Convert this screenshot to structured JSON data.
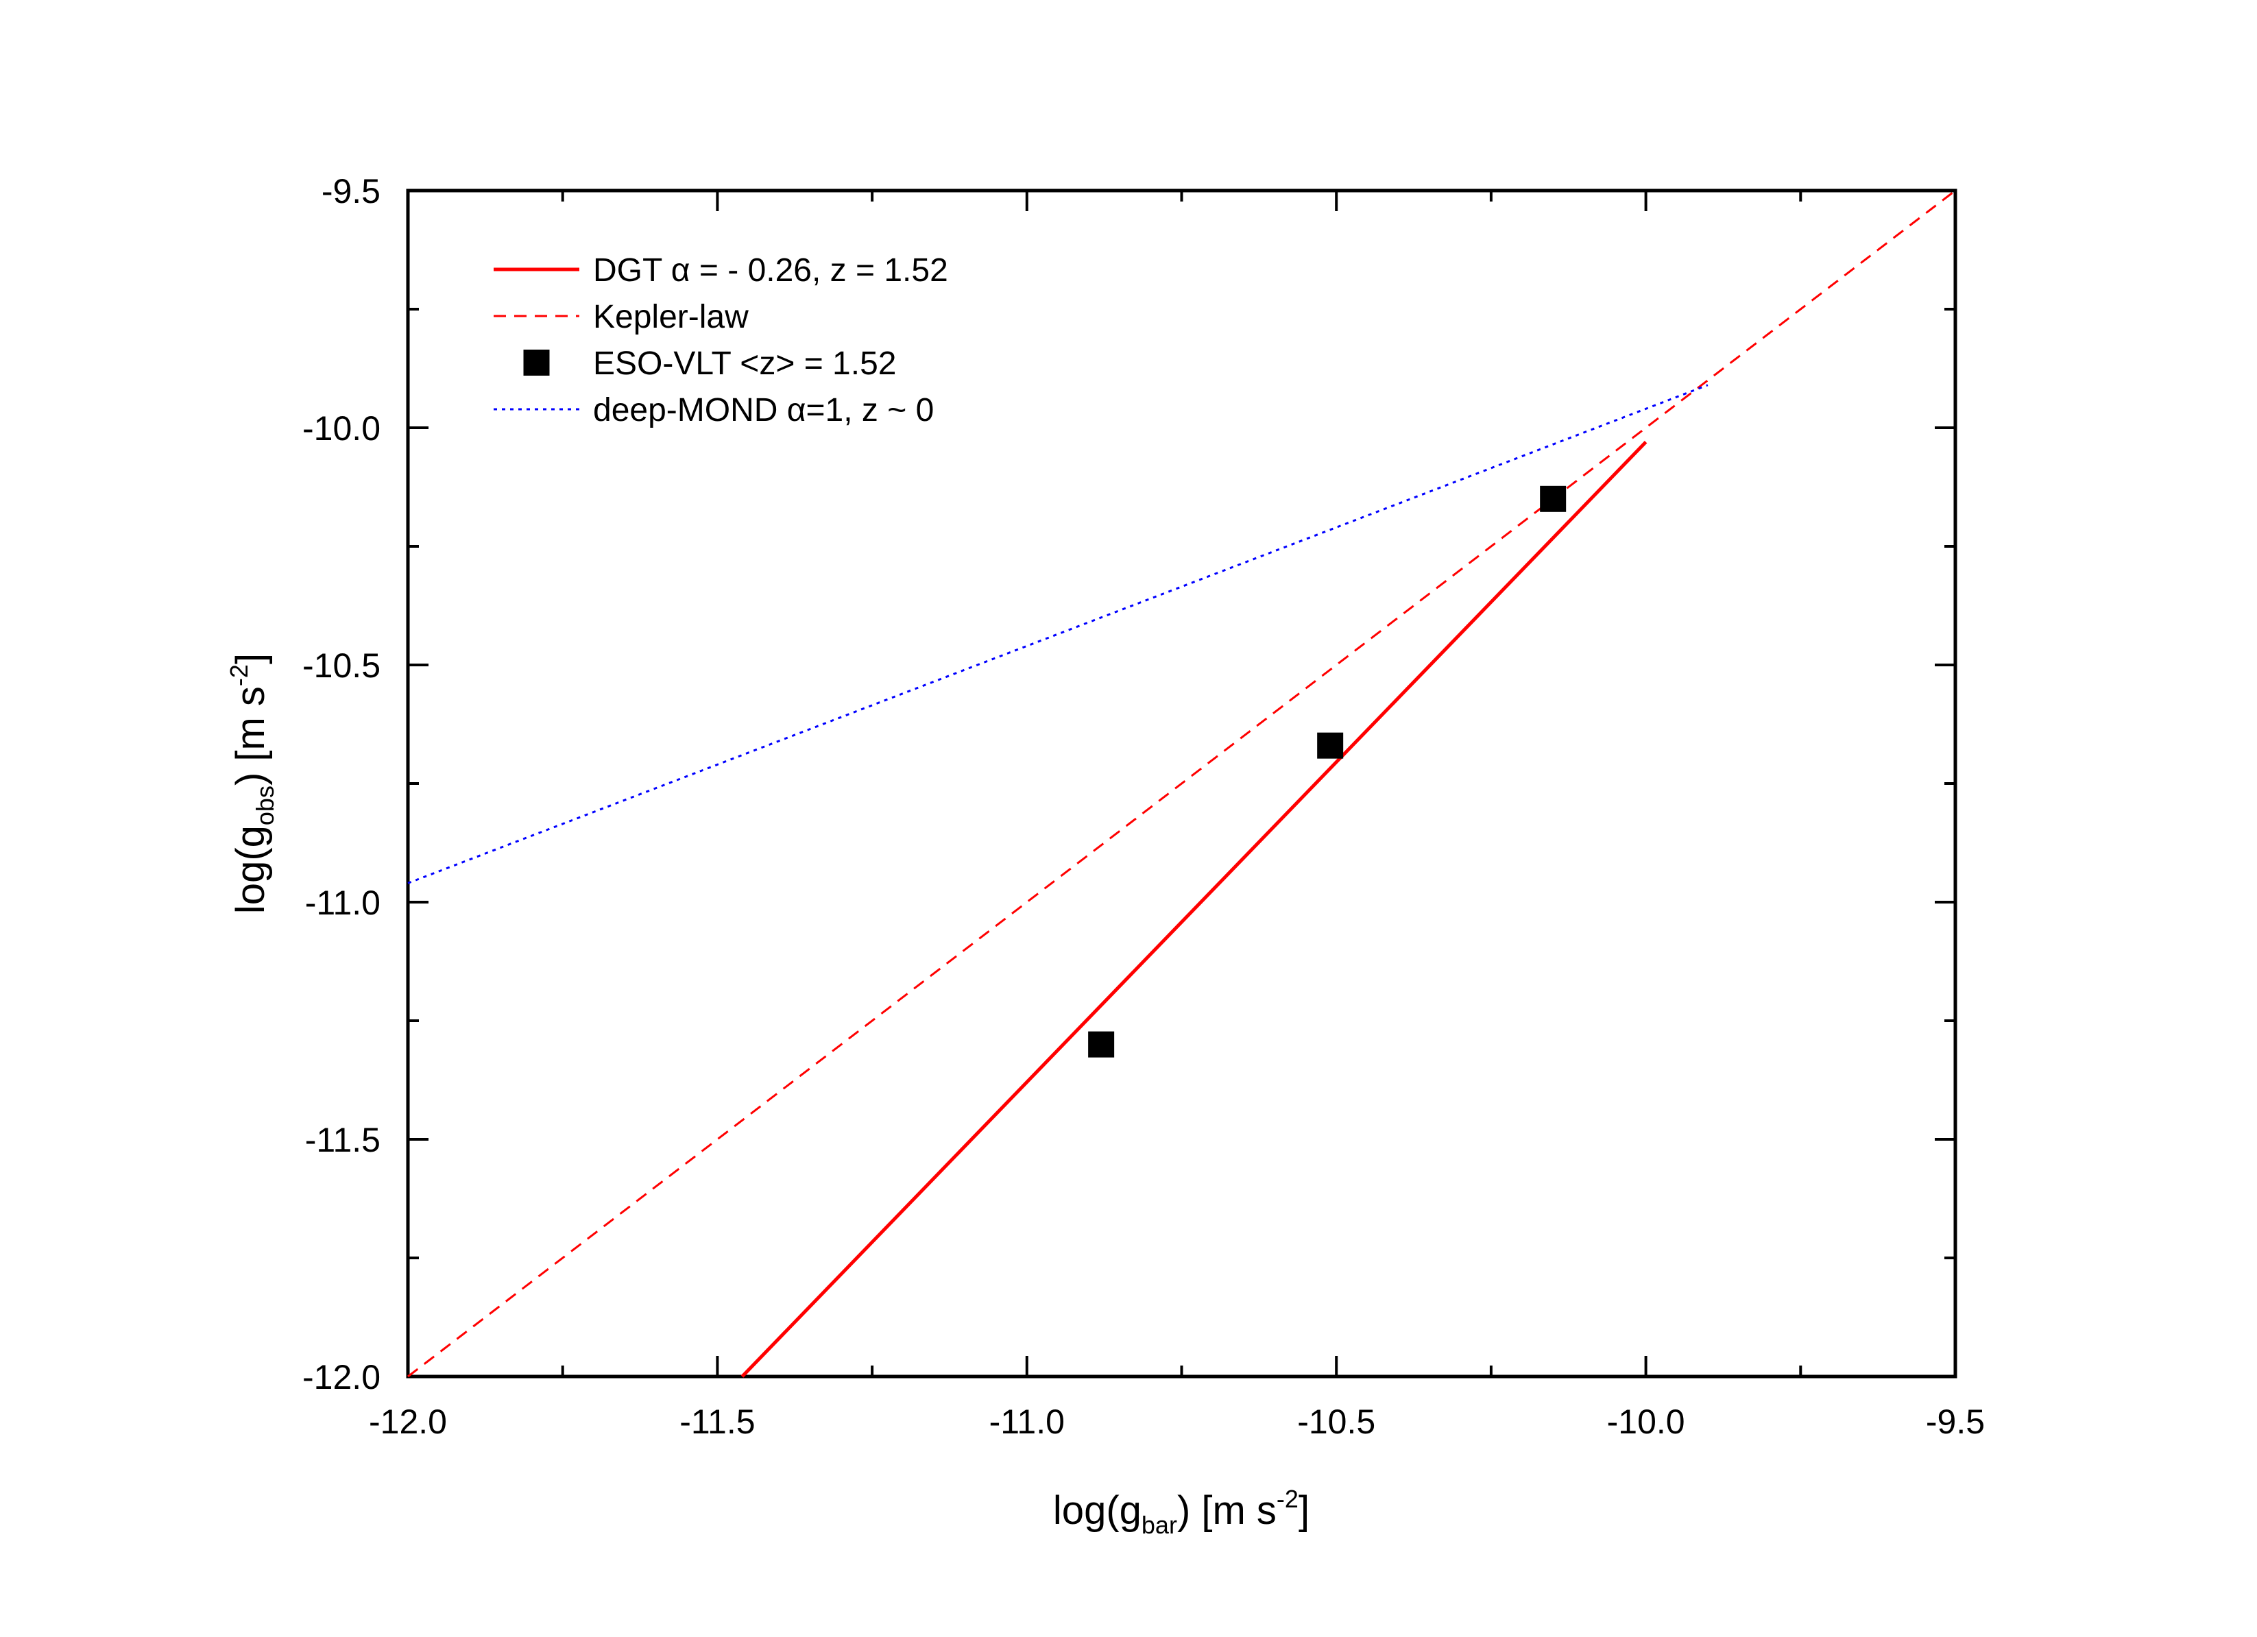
{
  "chart_data": {
    "type": "scatter",
    "xlabel": {
      "pre": "log(g",
      "sub": "bar",
      "post": ") [m s",
      "sup": "-2",
      "end": "]"
    },
    "ylabel": {
      "pre": "log(g",
      "sub": "obs",
      "post": ") [m s",
      "sup": "-2",
      "end": "]"
    },
    "xlim": [
      -12.0,
      -9.5
    ],
    "ylim": [
      -12.0,
      -9.5
    ],
    "x_ticks": [
      "-12.0",
      "-11.5",
      "-11.0",
      "-10.5",
      "-10.0",
      "-9.5"
    ],
    "y_ticks": [
      "-12.0",
      "-11.5",
      "-11.0",
      "-10.5",
      "-10.0",
      "-9.5"
    ],
    "grid": false,
    "legend_position": "top-left",
    "series": [
      {
        "name": "DGT α = - 0.26, z = 1.52",
        "kind": "line",
        "style": "solid",
        "color": "#ff0000",
        "x": [
          -11.46,
          -10.0
        ],
        "y": [
          -12.0,
          -10.03
        ]
      },
      {
        "name": "Kepler-law",
        "kind": "line",
        "style": "dashed",
        "color": "#ff0000",
        "x": [
          -12.0,
          -9.5
        ],
        "y": [
          -12.0,
          -9.5
        ]
      },
      {
        "name": "ESO-VLT <z> = 1.52",
        "kind": "scatter",
        "marker": "square",
        "color": "#000000",
        "x": [
          -10.88,
          -10.51,
          -10.15
        ],
        "y": [
          -11.3,
          -10.67,
          -10.15
        ]
      },
      {
        "name": "deep-MOND α=1, z ~ 0",
        "kind": "line",
        "style": "dotted",
        "color": "#0000ff",
        "x": [
          -12.0,
          -9.9
        ],
        "y": [
          -10.96,
          -9.91
        ]
      }
    ]
  }
}
